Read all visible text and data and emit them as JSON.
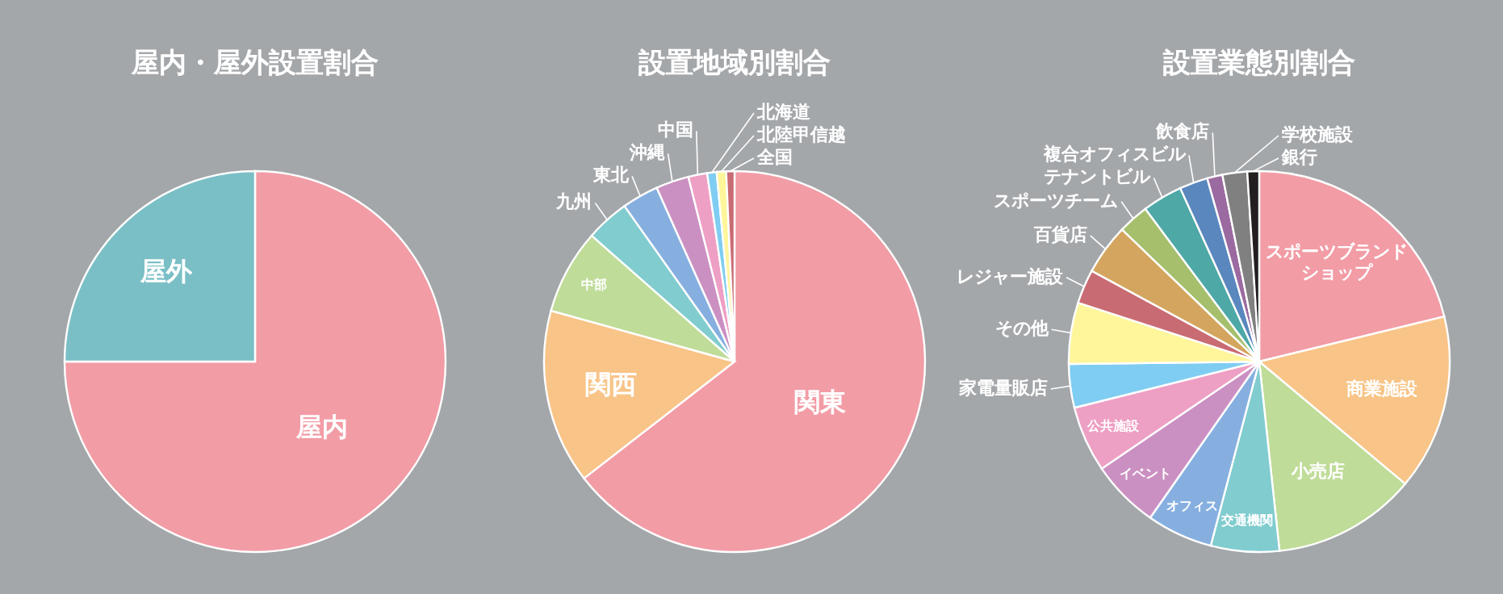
{
  "chart_data": [
    {
      "type": "pie",
      "title": "屋内・屋外設置割合",
      "categories": [
        "屋内",
        "屋外"
      ],
      "values": [
        75,
        25
      ],
      "colors": [
        "#f29ca6",
        "#7bbfc6"
      ]
    },
    {
      "type": "pie",
      "title": "設置地域別割合",
      "categories": [
        "関東",
        "関西",
        "中部",
        "九州",
        "東北",
        "沖縄",
        "中国",
        "北海道",
        "北陸甲信越",
        "全国"
      ],
      "values": [
        64.5,
        14.8,
        7.2,
        3.7,
        3.1,
        2.8,
        1.6,
        0.8,
        0.8,
        0.7
      ],
      "colors": [
        "#f29ca6",
        "#f8c487",
        "#bfdc98",
        "#80cccf",
        "#86afe0",
        "#cb90c2",
        "#ee9fc4",
        "#7fcdf2",
        "#fff59b",
        "#c96b73"
      ]
    },
    {
      "type": "pie",
      "title": "設置業態別割合",
      "categories": [
        "スポーツブランドショップ",
        "商業施設",
        "小売店",
        "交通機関",
        "オフィス",
        "イベント",
        "公共施設",
        "家電量販店",
        "その他",
        "レジャー施設",
        "百貨店",
        "スポーツチーム",
        "テナントビル",
        "複合オフィスビル",
        "飲食店",
        "学校施設",
        "銀行"
      ],
      "values": [
        21.2,
        14.9,
        12.2,
        5.8,
        5.6,
        5.8,
        5.6,
        3.7,
        5.2,
        2.9,
        4.3,
        2.6,
        3.4,
        2.4,
        1.3,
        2.1,
        1.0
      ],
      "colors": [
        "#f29ca6",
        "#f8c487",
        "#bfdc98",
        "#80cccf",
        "#86afe0",
        "#cb90c2",
        "#ee9fc4",
        "#7fcdf2",
        "#fff59b",
        "#c96b73",
        "#d4a55e",
        "#a5bf6c",
        "#4da8a6",
        "#5a87bd",
        "#9b6aa0",
        "#808080",
        "#231f20"
      ]
    }
  ]
}
